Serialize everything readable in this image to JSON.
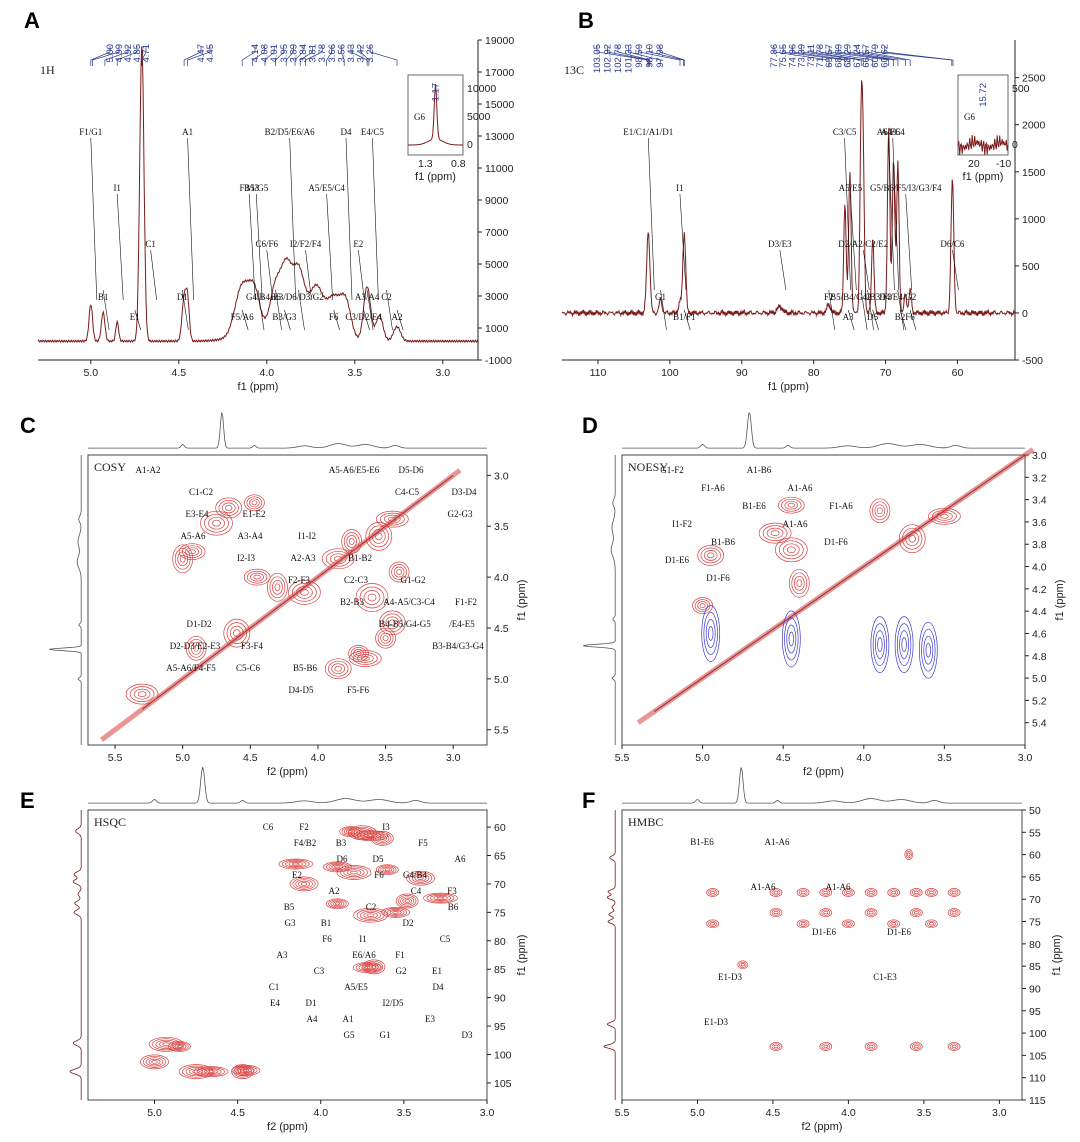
{
  "colors": {
    "spectrum": "#7a1a1a",
    "contour_pos": "#d84040",
    "contour_neg": "#3b3bd0",
    "shift_label": "#2a3b8f"
  },
  "panels": [
    {
      "letter": "A",
      "title": "1H",
      "kind": "1d",
      "xlabel": "f1 (ppm)",
      "xlim": [
        5.3,
        2.8
      ],
      "xticks": [
        5.0,
        4.5,
        4.0,
        3.5,
        3.0
      ],
      "ylim": [
        -1000,
        19000
      ],
      "yticks": [
        -1000,
        1000,
        3000,
        5000,
        7000,
        9000,
        11000,
        13000,
        15000,
        17000,
        19000
      ],
      "shift_labels": [
        "5.00",
        "4.99",
        "4.92",
        "4.85",
        "4.71",
        "4.47",
        "4.45",
        "4.14",
        "4.08",
        "4.01",
        "3.95",
        "3.89",
        "3.84",
        "3.81",
        "3.78",
        "3.66",
        "3.56",
        "3.43",
        "3.42",
        "3.26"
      ],
      "peaks": [
        {
          "label": "F1/G1",
          "ppm": 5.0
        },
        {
          "label": "B1",
          "ppm": 4.93
        },
        {
          "label": "I1",
          "ppm": 4.85
        },
        {
          "label": "E1",
          "ppm": 4.75
        },
        {
          "label": "C1",
          "ppm": 4.66
        },
        {
          "label": "D1",
          "ppm": 4.48
        },
        {
          "label": "A1",
          "ppm": 4.45
        },
        {
          "label": "F5/A6",
          "ppm": 4.14
        },
        {
          "label": "F3/I3",
          "ppm": 4.1
        },
        {
          "label": "G4/B4",
          "ppm": 4.05
        },
        {
          "label": "C6/F6",
          "ppm": 4.0
        },
        {
          "label": "B3/G3",
          "ppm": 3.9
        },
        {
          "label": "B2/D5/E6/A6",
          "ppm": 3.87
        },
        {
          "label": "E3/D6/D3/G2",
          "ppm": 3.82
        },
        {
          "label": "A5/E5/C4",
          "ppm": 3.66
        },
        {
          "label": "C3/D2/E4",
          "ppm": 3.45
        },
        {
          "label": "E2",
          "ppm": 3.48
        },
        {
          "label": "A3/A4",
          "ppm": 3.43
        },
        {
          "label": "E4/C5",
          "ppm": 3.4
        },
        {
          "label": "A2",
          "ppm": 3.26
        },
        {
          "label": "B5/G5",
          "ppm": 4.06
        },
        {
          "label": "B6",
          "ppm": 3.95
        },
        {
          "label": "I2/F2/F4",
          "ppm": 3.78
        },
        {
          "label": "F6",
          "ppm": 3.62
        },
        {
          "label": "D4",
          "ppm": 3.55
        },
        {
          "label": "C2",
          "ppm": 3.32
        }
      ],
      "inset": {
        "label": "G6",
        "value": "1.17",
        "xlabel": "f1 (ppm)",
        "xticks": [
          "1.3",
          "0.8"
        ],
        "yticks": [
          "10000",
          "5000",
          "0"
        ]
      }
    },
    {
      "letter": "B",
      "title": "13C",
      "kind": "1d",
      "xlabel": "f1 (ppm)",
      "xlim": [
        115,
        52
      ],
      "xticks": [
        110,
        100,
        90,
        80,
        70,
        60
      ],
      "ylim": [
        -500,
        2900
      ],
      "yticks": [
        -500,
        0,
        500,
        1000,
        1500,
        2000,
        2500
      ],
      "shift_labels": [
        "103.05",
        "102.92",
        "102.78",
        "101.33",
        "98.59",
        "98.10",
        "97.98",
        "77.86",
        "75.65",
        "74.96",
        "73.39",
        "73.11",
        "71.78",
        "69.57",
        "68.89",
        "68.29",
        "67.24",
        "66.57",
        "60.79",
        "60.62"
      ],
      "peaks": [
        {
          "label": "E1/C1/A1/D1",
          "ppm": 103
        },
        {
          "label": "G1",
          "ppm": 101.3
        },
        {
          "label": "I1",
          "ppm": 98.6
        },
        {
          "label": "B1/F1",
          "ppm": 98
        },
        {
          "label": "D3/E3",
          "ppm": 84.7
        },
        {
          "label": "F2",
          "ppm": 77.9
        },
        {
          "label": "C3/C5",
          "ppm": 75.7
        },
        {
          "label": "A3",
          "ppm": 75.2
        },
        {
          "label": "A5/E5",
          "ppm": 74.9
        },
        {
          "label": "B5/B4/G4/B3/F3",
          "ppm": 73.4
        },
        {
          "label": "D2/A2/C2/E2",
          "ppm": 73.1
        },
        {
          "label": "D5",
          "ppm": 71.8
        },
        {
          "label": "A6/E6",
          "ppm": 69.6
        },
        {
          "label": "D4/E4/G2",
          "ppm": 68.3
        },
        {
          "label": "G5/B6/F5/I3/G3/F4",
          "ppm": 67.2
        },
        {
          "label": "F6",
          "ppm": 66.6
        },
        {
          "label": "D6/C6",
          "ppm": 60.7
        },
        {
          "label": "I2",
          "ppm": 72.5
        },
        {
          "label": "A4/C4",
          "ppm": 69.0
        },
        {
          "label": "B2",
          "ppm": 68.0
        }
      ],
      "inset": {
        "label": "G6",
        "value": "15.72",
        "xlabel": "f1 (ppm)",
        "xticks": [
          "20",
          "-10"
        ],
        "yticks": [
          "500",
          "0"
        ]
      }
    },
    {
      "letter": "C",
      "title": "COSY",
      "kind": "2d",
      "xlabel": "f2 (ppm)",
      "ylabel": "f1 (ppm)",
      "xlim": [
        5.7,
        2.75
      ],
      "ylim": [
        2.8,
        5.65
      ],
      "xticks": [
        5.5,
        5.0,
        4.5,
        4.0,
        3.5,
        3.0
      ],
      "yticks": [
        3.0,
        3.5,
        4.0,
        4.5,
        5.0,
        5.5
      ],
      "cross_labels": [
        "A1-A2",
        "C1-C2",
        "E1-E2",
        "I1-I2",
        "B1-B2",
        "G1-G2",
        "F1-F2",
        "D1-D2",
        "F3-F4",
        "B5-B6",
        "F5-F6",
        "D5-D6",
        "D3-D4",
        "E3-E4",
        "A3-A4",
        "A2-A3",
        "C2-C3",
        "A4-A5/C3-C4",
        "/E4-E5",
        "D2-D3/E2-E3",
        "C5-C6",
        "D4-D5",
        "A5-A6/E5-E6",
        "C4-C5",
        "G2-G3",
        "A5-A6",
        "I2-I3",
        "F2-F3",
        "B2-B3",
        "B4-B5/G4-G5",
        "B3-B4/G3-G4",
        "A5-A6/F4-F5"
      ]
    },
    {
      "letter": "D",
      "title": "NOESY",
      "kind": "2d",
      "xlabel": "f2 (ppm)",
      "ylabel": "f1 (ppm)",
      "xlim": [
        5.5,
        3.0
      ],
      "ylim": [
        3.0,
        5.6
      ],
      "xticks": [
        5.5,
        5.0,
        4.5,
        4.0,
        3.5,
        3.0
      ],
      "yticks": [
        3.0,
        3.2,
        3.4,
        3.6,
        3.8,
        4.0,
        4.2,
        4.4,
        4.6,
        4.8,
        5.0,
        5.2,
        5.4
      ],
      "cross_labels": [
        "G1-F2",
        "F1-A6",
        "B1-E6",
        "A1-A6",
        "D1-F6",
        "D1-E6",
        "D1-F6",
        "A1-B6",
        "A1-A6",
        "F1-A6",
        "I1-F2",
        "B1-B6"
      ]
    },
    {
      "letter": "E",
      "title": "HSQC",
      "kind": "2d",
      "xlabel": "f2 (ppm)",
      "ylabel": "f1 (ppm)",
      "xlim": [
        5.4,
        3.0
      ],
      "ylim": [
        57,
        108
      ],
      "xticks": [
        5.0,
        4.5,
        4.0,
        3.5,
        3.0
      ],
      "yticks": [
        60,
        65,
        70,
        75,
        80,
        85,
        90,
        95,
        100,
        105
      ],
      "cross_labels": [
        "C6",
        "F4/B2",
        "D6",
        "F6",
        "C4",
        "B6",
        "G3",
        "F6",
        "E6/A6",
        "G2",
        "D4",
        "E4",
        "A4",
        "G5",
        "I3",
        "F5",
        "A6",
        "E2",
        "A2",
        "C2",
        "D2",
        "C5",
        "A3",
        "C3",
        "A5/E5",
        "I2/D5",
        "E3",
        "D3",
        "F2",
        "B3",
        "D5",
        "G4/B4",
        "F3",
        "B5",
        "B1",
        "I1",
        "F1",
        "E1",
        "C1",
        "D1",
        "A1",
        "G1"
      ]
    },
    {
      "letter": "F",
      "title": "HMBC",
      "kind": "2d",
      "xlabel": "f2 (ppm)",
      "ylabel": "f1 (ppm)",
      "xlim": [
        5.5,
        2.85
      ],
      "ylim": [
        50,
        115
      ],
      "xticks": [
        5.5,
        5.0,
        4.5,
        4.0,
        3.5,
        3.0
      ],
      "yticks": [
        50,
        55,
        60,
        65,
        70,
        75,
        80,
        85,
        90,
        95,
        100,
        105,
        110,
        115
      ],
      "cross_labels": [
        "B1-E6",
        "A1-A6",
        "D1-E6",
        "C1-E3",
        "E1-D3",
        "A1-A6",
        "A1-A6",
        "D1-E6",
        "E1-D3"
      ]
    }
  ]
}
